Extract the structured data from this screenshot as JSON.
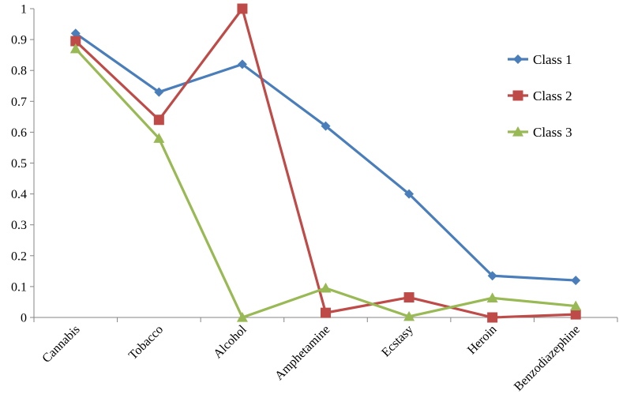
{
  "chart_data": {
    "type": "line",
    "title": "",
    "xlabel": "",
    "ylabel": "",
    "categories": [
      "Cannabis",
      "Tobacco",
      "Alcohol",
      "Amphetamine",
      "Ecstasy",
      "Heroin",
      "Benzodiazephine"
    ],
    "y_ticks": [
      "0",
      "0.1",
      "0.2",
      "0.3",
      "0.4",
      "0.5",
      "0.6",
      "0.7",
      "0.8",
      "0.9",
      "1"
    ],
    "ylim": [
      0,
      1
    ],
    "grid": false,
    "legend_position": "right",
    "series": [
      {
        "name": "Class 1",
        "marker": "diamond",
        "color": "#4a7ebb",
        "values": [
          0.92,
          0.73,
          0.82,
          0.62,
          0.4,
          0.135,
          0.12
        ]
      },
      {
        "name": "Class 2",
        "marker": "square",
        "color": "#be4b48",
        "values": [
          0.895,
          0.64,
          1.0,
          0.015,
          0.065,
          0.0,
          0.01
        ]
      },
      {
        "name": "Class 3",
        "marker": "triangle",
        "color": "#98b954",
        "values": [
          0.87,
          0.58,
          0.0,
          0.095,
          0.003,
          0.063,
          0.037
        ]
      }
    ]
  }
}
